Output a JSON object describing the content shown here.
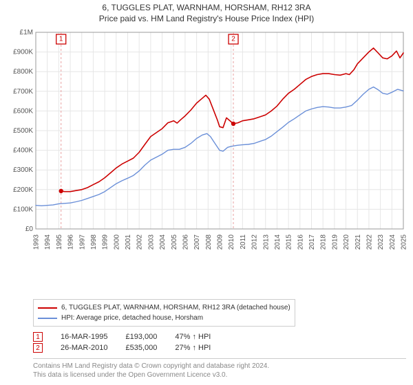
{
  "titles": {
    "main": "6, TUGGLES PLAT, WARNHAM, HORSHAM, RH12 3RA",
    "sub": "Price paid vs. HM Land Registry's House Price Index (HPI)"
  },
  "chart": {
    "type": "line",
    "background_color": "#ffffff",
    "grid_color": "#e6e6e6",
    "axis_color": "#999999",
    "axis_label_color": "#555555",
    "y": {
      "min": 0,
      "max": 1000000,
      "step": 100000,
      "ticks": [
        "£0",
        "£100K",
        "£200K",
        "£300K",
        "£400K",
        "£500K",
        "£600K",
        "£700K",
        "£800K",
        "£900K",
        "£1M"
      ]
    },
    "x": {
      "min": 1993,
      "max": 2025,
      "step": 1,
      "ticks": [
        "1993",
        "1994",
        "1995",
        "1996",
        "1997",
        "1998",
        "1999",
        "2000",
        "2001",
        "2002",
        "2003",
        "2004",
        "2005",
        "2006",
        "2007",
        "2008",
        "2009",
        "2010",
        "2011",
        "2012",
        "2013",
        "2014",
        "2015",
        "2016",
        "2017",
        "2018",
        "2019",
        "2020",
        "2021",
        "2022",
        "2023",
        "2024",
        "2025"
      ]
    },
    "markers": [
      {
        "id": "1",
        "year": 1995.2,
        "value": 193000,
        "line_color": "#e8a0a0"
      },
      {
        "id": "2",
        "year": 2010.2,
        "value": 535000,
        "line_color": "#e8a0a0"
      }
    ],
    "series": [
      {
        "name": "subject",
        "color": "#cc0000",
        "width": 1.6,
        "points": [
          [
            1995.2,
            193000
          ],
          [
            1995.5,
            190000
          ],
          [
            1996.0,
            190000
          ],
          [
            1996.5,
            195000
          ],
          [
            1997.0,
            200000
          ],
          [
            1997.5,
            210000
          ],
          [
            1998.0,
            225000
          ],
          [
            1998.5,
            240000
          ],
          [
            1999.0,
            260000
          ],
          [
            1999.5,
            285000
          ],
          [
            2000.0,
            310000
          ],
          [
            2000.5,
            330000
          ],
          [
            2001.0,
            345000
          ],
          [
            2001.5,
            360000
          ],
          [
            2002.0,
            390000
          ],
          [
            2002.5,
            430000
          ],
          [
            2003.0,
            470000
          ],
          [
            2003.5,
            490000
          ],
          [
            2004.0,
            510000
          ],
          [
            2004.5,
            540000
          ],
          [
            2005.0,
            550000
          ],
          [
            2005.3,
            538000
          ],
          [
            2005.6,
            555000
          ],
          [
            2006.0,
            575000
          ],
          [
            2006.5,
            605000
          ],
          [
            2007.0,
            640000
          ],
          [
            2007.5,
            665000
          ],
          [
            2007.8,
            680000
          ],
          [
            2008.1,
            660000
          ],
          [
            2008.5,
            600000
          ],
          [
            2008.8,
            555000
          ],
          [
            2009.0,
            520000
          ],
          [
            2009.3,
            515000
          ],
          [
            2009.6,
            565000
          ],
          [
            2010.0,
            545000
          ],
          [
            2010.2,
            535000
          ],
          [
            2010.6,
            540000
          ],
          [
            2011.0,
            550000
          ],
          [
            2011.5,
            555000
          ],
          [
            2012.0,
            560000
          ],
          [
            2012.5,
            570000
          ],
          [
            2013.0,
            580000
          ],
          [
            2013.5,
            600000
          ],
          [
            2014.0,
            625000
          ],
          [
            2014.5,
            660000
          ],
          [
            2015.0,
            690000
          ],
          [
            2015.5,
            710000
          ],
          [
            2016.0,
            735000
          ],
          [
            2016.5,
            760000
          ],
          [
            2017.0,
            775000
          ],
          [
            2017.5,
            785000
          ],
          [
            2018.0,
            790000
          ],
          [
            2018.5,
            790000
          ],
          [
            2019.0,
            785000
          ],
          [
            2019.5,
            782000
          ],
          [
            2020.0,
            790000
          ],
          [
            2020.3,
            785000
          ],
          [
            2020.7,
            810000
          ],
          [
            2021.0,
            840000
          ],
          [
            2021.5,
            870000
          ],
          [
            2022.0,
            900000
          ],
          [
            2022.4,
            920000
          ],
          [
            2022.8,
            895000
          ],
          [
            2023.2,
            870000
          ],
          [
            2023.6,
            865000
          ],
          [
            2024.0,
            880000
          ],
          [
            2024.4,
            905000
          ],
          [
            2024.7,
            870000
          ],
          [
            2025.0,
            895000
          ]
        ]
      },
      {
        "name": "hpi",
        "color": "#6a8fd8",
        "width": 1.4,
        "points": [
          [
            1993.0,
            120000
          ],
          [
            1993.5,
            118000
          ],
          [
            1994.0,
            120000
          ],
          [
            1994.5,
            122000
          ],
          [
            1995.0,
            128000
          ],
          [
            1995.5,
            130000
          ],
          [
            1996.0,
            132000
          ],
          [
            1996.5,
            138000
          ],
          [
            1997.0,
            145000
          ],
          [
            1997.5,
            155000
          ],
          [
            1998.0,
            165000
          ],
          [
            1998.5,
            175000
          ],
          [
            1999.0,
            190000
          ],
          [
            1999.5,
            210000
          ],
          [
            2000.0,
            230000
          ],
          [
            2000.5,
            245000
          ],
          [
            2001.0,
            258000
          ],
          [
            2001.5,
            272000
          ],
          [
            2002.0,
            295000
          ],
          [
            2002.5,
            325000
          ],
          [
            2003.0,
            350000
          ],
          [
            2003.5,
            365000
          ],
          [
            2004.0,
            380000
          ],
          [
            2004.5,
            400000
          ],
          [
            2005.0,
            405000
          ],
          [
            2005.5,
            405000
          ],
          [
            2006.0,
            415000
          ],
          [
            2006.5,
            435000
          ],
          [
            2007.0,
            460000
          ],
          [
            2007.5,
            478000
          ],
          [
            2007.9,
            485000
          ],
          [
            2008.2,
            470000
          ],
          [
            2008.6,
            435000
          ],
          [
            2009.0,
            400000
          ],
          [
            2009.3,
            395000
          ],
          [
            2009.7,
            415000
          ],
          [
            2010.0,
            420000
          ],
          [
            2010.5,
            425000
          ],
          [
            2011.0,
            428000
          ],
          [
            2011.5,
            430000
          ],
          [
            2012.0,
            435000
          ],
          [
            2012.5,
            445000
          ],
          [
            2013.0,
            455000
          ],
          [
            2013.5,
            472000
          ],
          [
            2014.0,
            495000
          ],
          [
            2014.5,
            518000
          ],
          [
            2015.0,
            542000
          ],
          [
            2015.5,
            560000
          ],
          [
            2016.0,
            580000
          ],
          [
            2016.5,
            600000
          ],
          [
            2017.0,
            610000
          ],
          [
            2017.5,
            618000
          ],
          [
            2018.0,
            622000
          ],
          [
            2018.5,
            620000
          ],
          [
            2019.0,
            615000
          ],
          [
            2019.5,
            615000
          ],
          [
            2020.0,
            620000
          ],
          [
            2020.5,
            628000
          ],
          [
            2021.0,
            655000
          ],
          [
            2021.5,
            685000
          ],
          [
            2022.0,
            710000
          ],
          [
            2022.4,
            722000
          ],
          [
            2022.8,
            708000
          ],
          [
            2023.2,
            690000
          ],
          [
            2023.6,
            685000
          ],
          [
            2024.0,
            695000
          ],
          [
            2024.5,
            710000
          ],
          [
            2025.0,
            702000
          ]
        ]
      }
    ]
  },
  "legend": {
    "items": [
      {
        "color": "#cc0000",
        "label": "6, TUGGLES PLAT, WARNHAM, HORSHAM, RH12 3RA (detached house)"
      },
      {
        "color": "#6a8fd8",
        "label": "HPI: Average price, detached house, Horsham"
      }
    ]
  },
  "records": [
    {
      "marker": "1",
      "date": "16-MAR-1995",
      "price": "£193,000",
      "delta": "47% ↑ HPI"
    },
    {
      "marker": "2",
      "date": "26-MAR-2010",
      "price": "£535,000",
      "delta": "27% ↑ HPI"
    }
  ],
  "footer": {
    "line1": "Contains HM Land Registry data © Crown copyright and database right 2024.",
    "line2": "This data is licensed under the Open Government Licence v3.0."
  }
}
